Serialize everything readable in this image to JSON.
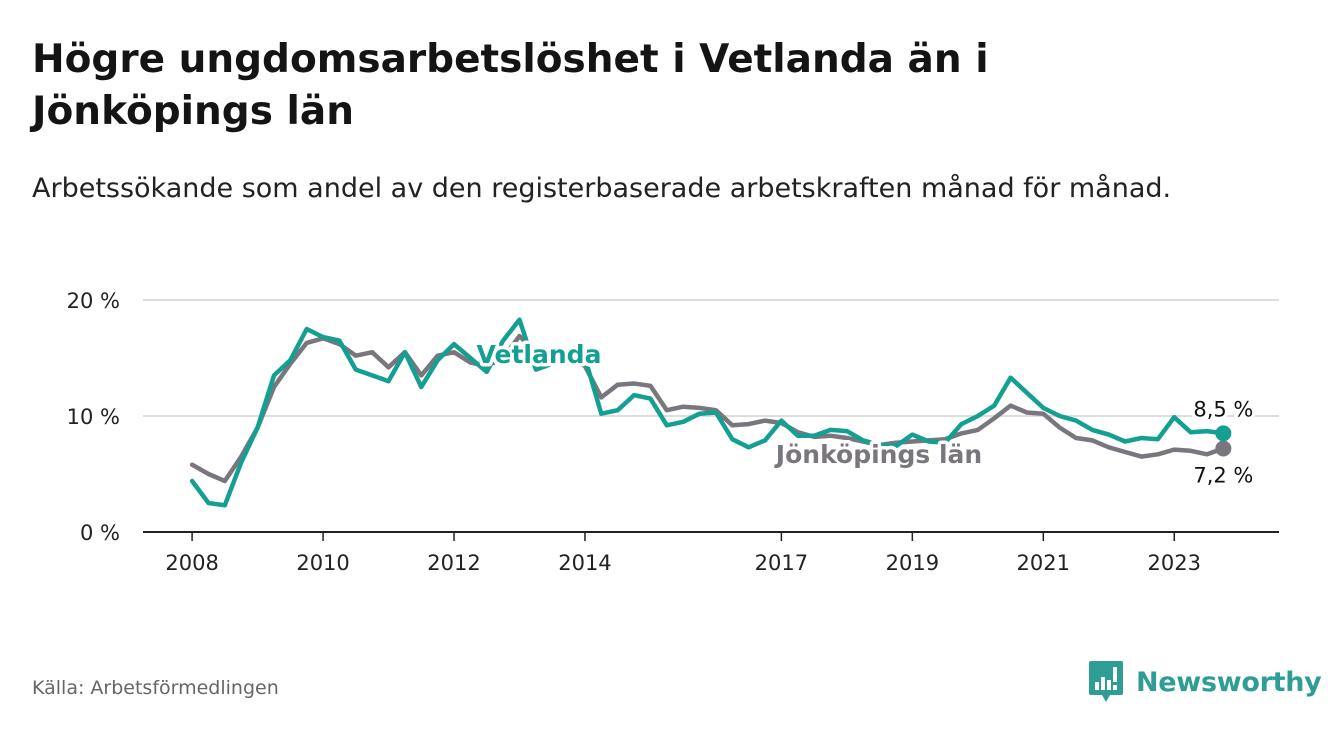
{
  "title": "Högre ungdomsarbetslöshet i Vetlanda än i Jönköpings län",
  "subtitle": "Arbetssökande som andel av den registerbaserade arbetskraften månad för månad.",
  "source": "Källa: Arbetsförmedlingen",
  "brand": "Newsworthy",
  "colors": {
    "vetlanda": "#13a093",
    "lan": "#7a767d",
    "grid": "#dddddd",
    "axis": "#222222",
    "brand": "#2e9e95"
  },
  "chart_data": {
    "type": "line",
    "ylim": [
      0,
      20
    ],
    "yticks": [
      {
        "value": 0,
        "label": "0 %"
      },
      {
        "value": 10,
        "label": "10 %"
      },
      {
        "value": 20,
        "label": "20 %"
      }
    ],
    "xlim": [
      2007.25,
      2024.6
    ],
    "xticks": [
      {
        "value": 2008,
        "label": "2008"
      },
      {
        "value": 2010,
        "label": "2010"
      },
      {
        "value": 2012,
        "label": "2012"
      },
      {
        "value": 2014,
        "label": "2014"
      },
      {
        "value": 2017,
        "label": "2017"
      },
      {
        "value": 2019,
        "label": "2019"
      },
      {
        "value": 2021,
        "label": "2021"
      },
      {
        "value": 2023,
        "label": "2023"
      }
    ],
    "series": [
      {
        "name": "Vetlanda",
        "label": "Vetlanda",
        "end_label": "8,5 %",
        "x": [
          2008.0,
          2008.25,
          2008.5,
          2008.75,
          2009.0,
          2009.25,
          2009.5,
          2009.75,
          2010.0,
          2010.25,
          2010.5,
          2010.75,
          2011.0,
          2011.25,
          2011.5,
          2011.75,
          2012.0,
          2012.25,
          2012.5,
          2012.75,
          2013.0,
          2013.25,
          2013.5,
          2013.75,
          2014.0,
          2014.25,
          2014.5,
          2014.75,
          2015.0,
          2015.25,
          2015.5,
          2015.75,
          2016.0,
          2016.25,
          2016.5,
          2016.75,
          2017.0,
          2017.25,
          2017.5,
          2017.75,
          2018.0,
          2018.25,
          2018.5,
          2018.75,
          2019.0,
          2019.25,
          2019.5,
          2019.75,
          2020.0,
          2020.25,
          2020.5,
          2020.75,
          2021.0,
          2021.25,
          2021.5,
          2021.75,
          2022.0,
          2022.25,
          2022.5,
          2022.75,
          2023.0,
          2023.25,
          2023.5,
          2023.75
        ],
        "values": [
          4.4,
          2.5,
          2.3,
          6.0,
          9.0,
          13.5,
          14.8,
          17.5,
          16.8,
          16.5,
          14.0,
          13.5,
          13.0,
          15.5,
          12.5,
          14.8,
          16.2,
          15.0,
          13.8,
          16.5,
          18.3,
          14.0,
          14.5,
          15.5,
          15.0,
          10.2,
          10.5,
          11.8,
          11.5,
          9.2,
          9.5,
          10.2,
          10.3,
          8.0,
          7.3,
          7.9,
          9.6,
          8.3,
          8.3,
          8.8,
          8.7,
          7.9,
          7.5,
          7.4,
          8.4,
          7.8,
          7.7,
          9.3,
          10.0,
          10.9,
          13.3,
          12.0,
          10.7,
          10.0,
          9.6,
          8.8,
          8.4,
          7.8,
          8.1,
          8.0,
          9.9,
          8.6,
          8.7,
          8.5
        ]
      },
      {
        "name": "Jönköpings län",
        "label": "Jönköpings län",
        "end_label": "7,2 %",
        "x": [
          2008.0,
          2008.25,
          2008.5,
          2008.75,
          2009.0,
          2009.25,
          2009.5,
          2009.75,
          2010.0,
          2010.25,
          2010.5,
          2010.75,
          2011.0,
          2011.25,
          2011.5,
          2011.75,
          2012.0,
          2012.25,
          2012.5,
          2012.75,
          2013.0,
          2013.25,
          2013.5,
          2013.75,
          2014.0,
          2014.25,
          2014.5,
          2014.75,
          2015.0,
          2015.25,
          2015.5,
          2015.75,
          2016.0,
          2016.25,
          2016.5,
          2016.75,
          2017.0,
          2017.25,
          2017.5,
          2017.75,
          2018.0,
          2018.25,
          2018.5,
          2018.75,
          2019.0,
          2019.25,
          2019.5,
          2019.75,
          2020.0,
          2020.25,
          2020.5,
          2020.75,
          2021.0,
          2021.25,
          2021.5,
          2021.75,
          2022.0,
          2022.25,
          2022.5,
          2022.75,
          2023.0,
          2023.25,
          2023.5,
          2023.75
        ],
        "values": [
          5.8,
          5.0,
          4.4,
          6.5,
          9.0,
          12.5,
          14.5,
          16.3,
          16.7,
          16.2,
          15.2,
          15.5,
          14.2,
          15.5,
          13.5,
          15.2,
          15.5,
          14.6,
          14.3,
          15.0,
          16.9,
          15.5,
          14.8,
          15.0,
          14.3,
          11.6,
          12.7,
          12.8,
          12.6,
          10.5,
          10.8,
          10.7,
          10.5,
          9.2,
          9.3,
          9.6,
          9.4,
          8.6,
          8.2,
          8.3,
          8.1,
          7.8,
          7.5,
          7.7,
          7.8,
          7.9,
          8.0,
          8.5,
          8.8,
          9.8,
          10.9,
          10.3,
          10.2,
          9.0,
          8.1,
          7.9,
          7.3,
          6.9,
          6.5,
          6.7,
          7.1,
          7.0,
          6.7,
          7.2
        ]
      }
    ]
  }
}
